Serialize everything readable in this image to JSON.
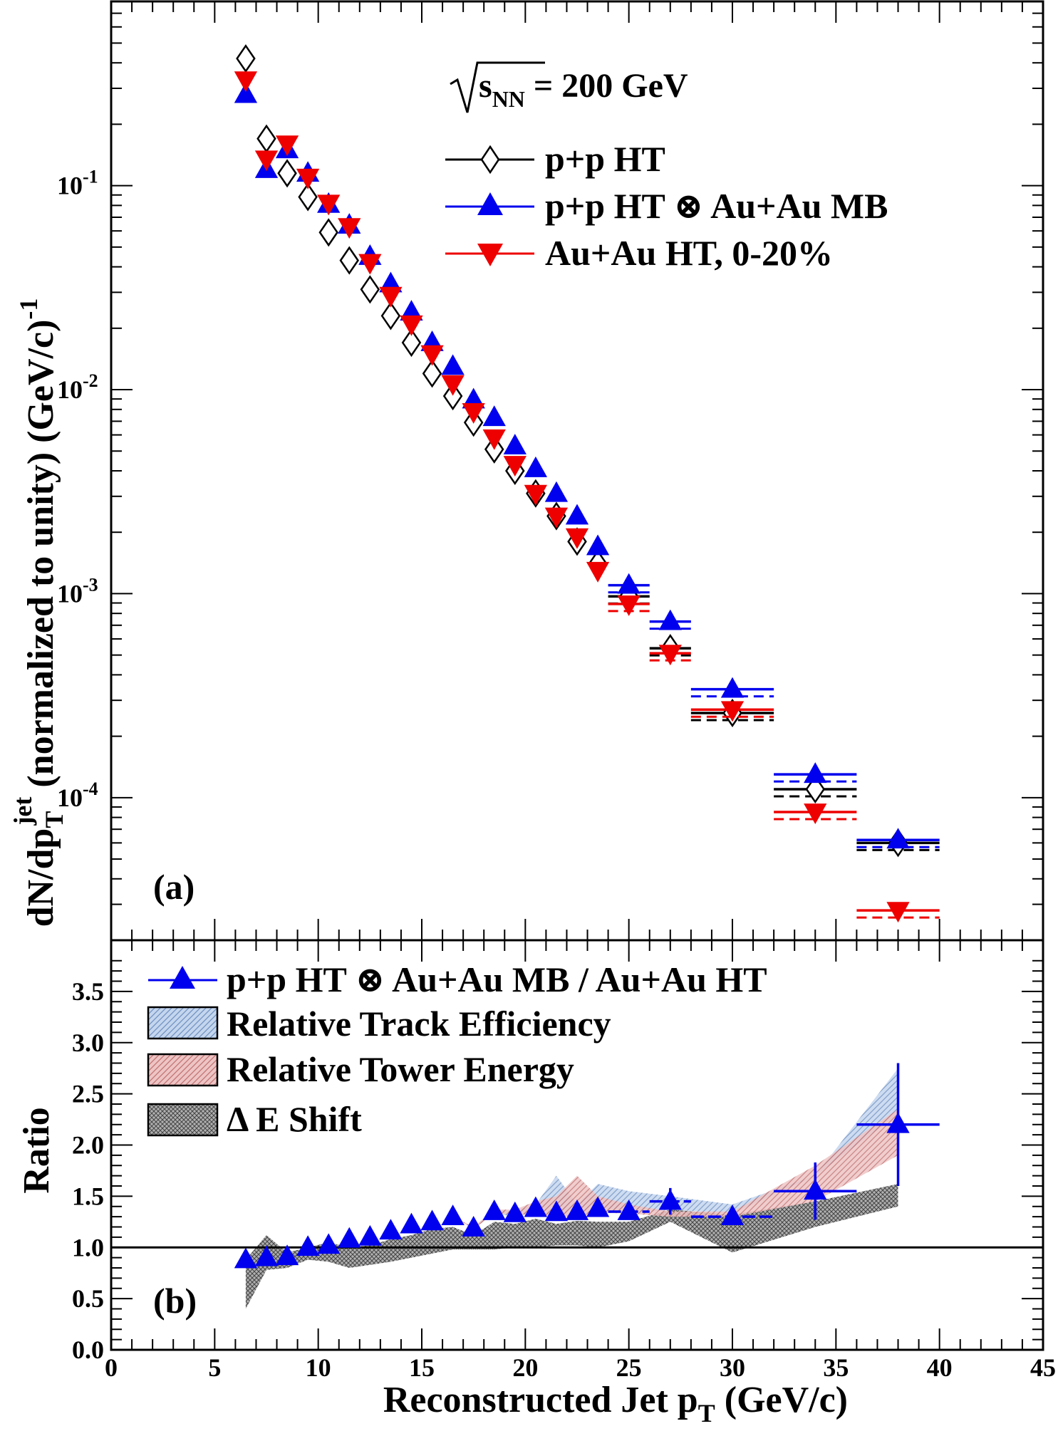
{
  "chart_data": [
    {
      "panel": "a",
      "type": "scatter",
      "panel_label": "(a)",
      "energy_label": "√s_NN = 200 GeV",
      "energy_parts": {
        "prefix": "s",
        "subscript": "NN",
        "suffix": " = 200 GeV"
      },
      "ylabel": "dN/dp_T^jet (normalized to unity) (GeV/c)^-1",
      "ylabel_parts": {
        "a": "dN/dp",
        "sub": "T",
        "sup": "jet",
        "b": " (normalized to unity) (GeV/c)",
        "sup2": "-1"
      },
      "xlim": [
        0,
        45
      ],
      "ylim": [
        2e-05,
        0.8
      ],
      "yscale": "log",
      "yticks": [
        {
          "value": 0.1,
          "base": "10",
          "exp": "-1"
        },
        {
          "value": 0.01,
          "base": "10",
          "exp": "-2"
        },
        {
          "value": 0.001,
          "base": "10",
          "exp": "-3"
        },
        {
          "value": 0.0001,
          "base": "10",
          "exp": "-4"
        }
      ],
      "legend_position": "top-right",
      "series": [
        {
          "name": "p+p HT",
          "marker": "open-diamond",
          "color": "#000000",
          "points": [
            {
              "x": 6.5,
              "y": 0.42,
              "xerr": 0
            },
            {
              "x": 7.5,
              "y": 0.17,
              "xerr": 0
            },
            {
              "x": 8.5,
              "y": 0.115,
              "xerr": 0
            },
            {
              "x": 9.5,
              "y": 0.088,
              "xerr": 0
            },
            {
              "x": 10.5,
              "y": 0.059,
              "xerr": 0
            },
            {
              "x": 11.5,
              "y": 0.043,
              "xerr": 0
            },
            {
              "x": 12.5,
              "y": 0.031,
              "xerr": 0
            },
            {
              "x": 13.5,
              "y": 0.023,
              "xerr": 0
            },
            {
              "x": 14.5,
              "y": 0.017,
              "xerr": 0
            },
            {
              "x": 15.5,
              "y": 0.012,
              "xerr": 0
            },
            {
              "x": 16.5,
              "y": 0.0093,
              "xerr": 0
            },
            {
              "x": 17.5,
              "y": 0.0069,
              "xerr": 0
            },
            {
              "x": 18.5,
              "y": 0.0051,
              "xerr": 0
            },
            {
              "x": 19.5,
              "y": 0.004,
              "xerr": 0
            },
            {
              "x": 20.5,
              "y": 0.0031,
              "xerr": 0
            },
            {
              "x": 21.5,
              "y": 0.0024,
              "xerr": 0
            },
            {
              "x": 22.5,
              "y": 0.0018,
              "xerr": 0
            },
            {
              "x": 23.5,
              "y": 0.0014,
              "xerr": 0
            },
            {
              "x": 25,
              "y": 0.00097,
              "xerr": 1
            },
            {
              "x": 27,
              "y": 0.00054,
              "xerr": 1
            },
            {
              "x": 30,
              "y": 0.00026,
              "xerr": 2
            },
            {
              "x": 34,
              "y": 0.00011,
              "xerr": 2
            },
            {
              "x": 38,
              "y": 6e-05,
              "xerr": 2
            }
          ]
        },
        {
          "name": "p+p HT ⊗ Au+Au MB",
          "marker": "filled-triangle-up",
          "color": "#0000ee",
          "points": [
            {
              "x": 6.5,
              "y": 0.28,
              "xerr": 0
            },
            {
              "x": 7.5,
              "y": 0.12,
              "xerr": 0
            },
            {
              "x": 8.5,
              "y": 0.15,
              "xerr": 0
            },
            {
              "x": 9.5,
              "y": 0.115,
              "xerr": 0
            },
            {
              "x": 10.5,
              "y": 0.081,
              "xerr": 0
            },
            {
              "x": 11.5,
              "y": 0.064,
              "xerr": 0
            },
            {
              "x": 12.5,
              "y": 0.045,
              "xerr": 0
            },
            {
              "x": 13.5,
              "y": 0.033,
              "xerr": 0
            },
            {
              "x": 14.5,
              "y": 0.024,
              "xerr": 0
            },
            {
              "x": 15.5,
              "y": 0.017,
              "xerr": 0
            },
            {
              "x": 16.5,
              "y": 0.013,
              "xerr": 0
            },
            {
              "x": 17.5,
              "y": 0.0089,
              "xerr": 0
            },
            {
              "x": 18.5,
              "y": 0.0073,
              "xerr": 0
            },
            {
              "x": 19.5,
              "y": 0.0053,
              "xerr": 0
            },
            {
              "x": 20.5,
              "y": 0.0041,
              "xerr": 0
            },
            {
              "x": 21.5,
              "y": 0.0031,
              "xerr": 0
            },
            {
              "x": 22.5,
              "y": 0.0024,
              "xerr": 0
            },
            {
              "x": 23.5,
              "y": 0.0017,
              "xerr": 0
            },
            {
              "x": 25,
              "y": 0.0011,
              "xerr": 1
            },
            {
              "x": 27,
              "y": 0.00073,
              "xerr": 1
            },
            {
              "x": 30,
              "y": 0.00034,
              "xerr": 2
            },
            {
              "x": 34,
              "y": 0.00013,
              "xerr": 2
            },
            {
              "x": 38,
              "y": 6.2e-05,
              "xerr": 2
            }
          ]
        },
        {
          "name": "Au+Au HT, 0-20%",
          "marker": "filled-triangle-down",
          "color": "#ee0000",
          "points": [
            {
              "x": 6.5,
              "y": 0.33,
              "xerr": 0
            },
            {
              "x": 7.5,
              "y": 0.135,
              "xerr": 0
            },
            {
              "x": 8.5,
              "y": 0.16,
              "xerr": 0
            },
            {
              "x": 9.5,
              "y": 0.11,
              "xerr": 0
            },
            {
              "x": 10.5,
              "y": 0.082,
              "xerr": 0
            },
            {
              "x": 11.5,
              "y": 0.063,
              "xerr": 0
            },
            {
              "x": 12.5,
              "y": 0.042,
              "xerr": 0
            },
            {
              "x": 13.5,
              "y": 0.029,
              "xerr": 0
            },
            {
              "x": 14.5,
              "y": 0.021,
              "xerr": 0
            },
            {
              "x": 15.5,
              "y": 0.015,
              "xerr": 0
            },
            {
              "x": 16.5,
              "y": 0.0107,
              "xerr": 0
            },
            {
              "x": 17.5,
              "y": 0.0078,
              "xerr": 0
            },
            {
              "x": 18.5,
              "y": 0.0058,
              "xerr": 0
            },
            {
              "x": 19.5,
              "y": 0.0043,
              "xerr": 0
            },
            {
              "x": 20.5,
              "y": 0.0031,
              "xerr": 0
            },
            {
              "x": 21.5,
              "y": 0.0024,
              "xerr": 0
            },
            {
              "x": 22.5,
              "y": 0.0019,
              "xerr": 0
            },
            {
              "x": 23.5,
              "y": 0.0013,
              "xerr": 0
            },
            {
              "x": 25,
              "y": 0.00089,
              "xerr": 1
            },
            {
              "x": 27,
              "y": 0.00051,
              "xerr": 1
            },
            {
              "x": 30,
              "y": 0.00027,
              "xerr": 2
            },
            {
              "x": 34,
              "y": 8.5e-05,
              "xerr": 2
            },
            {
              "x": 38,
              "y": 2.8e-05,
              "xerr": 2
            }
          ]
        }
      ]
    },
    {
      "panel": "b",
      "type": "scatter",
      "panel_label": "(b)",
      "xlabel": "Reconstructed Jet p_T (GeV/c)",
      "xlabel_parts": {
        "a": "Reconstructed Jet p",
        "sub": "T",
        "b": " (GeV/c)"
      },
      "ylabel": "Ratio",
      "xlim": [
        0,
        45
      ],
      "ylim": [
        0,
        4.0
      ],
      "xticks": [
        "0",
        "5",
        "10",
        "15",
        "20",
        "25",
        "30",
        "35",
        "40",
        "45"
      ],
      "yticks": [
        "0.0",
        "0.5",
        "1.0",
        "1.5",
        "2.0",
        "2.5",
        "3.0",
        "3.5"
      ],
      "reference_line": 1.0,
      "legend_position": "top-left",
      "series": [
        {
          "name": "p+p HT ⊗ Au+Au MB / Au+Au HT",
          "marker": "filled-triangle-up",
          "color": "#0000ee",
          "points": [
            {
              "x": 6.5,
              "y": 0.88,
              "xerr": 0,
              "yerr": 0
            },
            {
              "x": 7.5,
              "y": 0.9,
              "xerr": 0,
              "yerr": 0
            },
            {
              "x": 8.5,
              "y": 0.91,
              "xerr": 0,
              "yerr": 0
            },
            {
              "x": 9.5,
              "y": 1.0,
              "xerr": 0,
              "yerr": 0
            },
            {
              "x": 10.5,
              "y": 1.02,
              "xerr": 0,
              "yerr": 0
            },
            {
              "x": 11.5,
              "y": 1.08,
              "xerr": 0,
              "yerr": 0
            },
            {
              "x": 12.5,
              "y": 1.1,
              "xerr": 0,
              "yerr": 0
            },
            {
              "x": 13.5,
              "y": 1.16,
              "xerr": 0,
              "yerr": 0
            },
            {
              "x": 14.5,
              "y": 1.22,
              "xerr": 0,
              "yerr": 0
            },
            {
              "x": 15.5,
              "y": 1.25,
              "xerr": 0,
              "yerr": 0
            },
            {
              "x": 16.5,
              "y": 1.3,
              "xerr": 0,
              "yerr": 0
            },
            {
              "x": 17.5,
              "y": 1.19,
              "xerr": 0,
              "yerr": 0
            },
            {
              "x": 18.5,
              "y": 1.35,
              "xerr": 0,
              "yerr": 0
            },
            {
              "x": 19.5,
              "y": 1.33,
              "xerr": 0,
              "yerr": 0
            },
            {
              "x": 20.5,
              "y": 1.38,
              "xerr": 0,
              "yerr": 0
            },
            {
              "x": 21.5,
              "y": 1.34,
              "xerr": 0,
              "yerr": 0
            },
            {
              "x": 22.5,
              "y": 1.35,
              "xerr": 0,
              "yerr": 0
            },
            {
              "x": 23.5,
              "y": 1.38,
              "xerr": 0,
              "yerr": 0
            },
            {
              "x": 25,
              "y": 1.35,
              "xerr": 1,
              "yerr": 0
            },
            {
              "x": 27,
              "y": 1.45,
              "xerr": 1,
              "yerr": 0.13
            },
            {
              "x": 30,
              "y": 1.3,
              "xerr": 2,
              "yerr": 0.05
            },
            {
              "x": 34,
              "y": 1.55,
              "xerr": 2,
              "yerr": 0.28
            },
            {
              "x": 38,
              "y": 2.2,
              "xerr": 2,
              "yerr": 0.6
            }
          ]
        }
      ],
      "bands": [
        {
          "name": "Relative Track Efficiency",
          "color": "#b4c8e6",
          "x": [
            6.5,
            7.5,
            8.5,
            9.5,
            10.5,
            11.5,
            12.5,
            13.5,
            14.5,
            15.5,
            16.5,
            17.5,
            18.5,
            19.5,
            20.5,
            21.5,
            22.5,
            23.5,
            25,
            27,
            30,
            34,
            38
          ],
          "low": [
            0.88,
            0.9,
            0.91,
            1.0,
            1.02,
            1.08,
            1.1,
            1.16,
            1.22,
            1.25,
            1.3,
            1.19,
            1.33,
            1.3,
            1.35,
            1.3,
            1.32,
            1.35,
            1.33,
            1.37,
            1.33,
            1.7,
            2.3
          ],
          "high": [
            0.88,
            0.9,
            0.91,
            1.0,
            1.02,
            1.08,
            1.1,
            1.16,
            1.22,
            1.25,
            1.3,
            1.2,
            1.36,
            1.36,
            1.42,
            1.7,
            1.42,
            1.62,
            1.55,
            1.5,
            1.42,
            1.7,
            2.75
          ]
        },
        {
          "name": "Relative Tower Energy",
          "color": "#e6b4b4",
          "x": [
            6.5,
            7.5,
            8.5,
            9.5,
            10.5,
            11.5,
            12.5,
            13.5,
            14.5,
            15.5,
            16.5,
            17.5,
            18.5,
            19.5,
            20.5,
            21.5,
            22.5,
            23.5,
            25,
            27,
            30,
            34,
            38
          ],
          "low": [
            0.88,
            0.9,
            0.91,
            1.0,
            1.02,
            1.08,
            1.1,
            1.16,
            1.22,
            1.25,
            1.3,
            1.18,
            1.33,
            1.32,
            1.32,
            1.3,
            1.3,
            1.34,
            1.33,
            1.3,
            1.3,
            1.45,
            1.9
          ],
          "high": [
            0.88,
            0.9,
            0.91,
            1.0,
            1.02,
            1.08,
            1.1,
            1.16,
            1.22,
            1.25,
            1.3,
            1.2,
            1.37,
            1.37,
            1.45,
            1.5,
            1.7,
            1.5,
            1.42,
            1.35,
            1.35,
            1.8,
            2.35
          ]
        },
        {
          "name": "Δ E Shift",
          "color": "#9a9a9a",
          "x": [
            6.5,
            7.5,
            8.5,
            9.5,
            10.5,
            11.5,
            12.5,
            13.5,
            14.5,
            15.5,
            16.5,
            17.5,
            18.5,
            19.5,
            20.5,
            21.5,
            22.5,
            23.5,
            25,
            27,
            30,
            34,
            38
          ],
          "low": [
            0.4,
            0.78,
            0.8,
            0.88,
            0.86,
            0.8,
            0.83,
            0.86,
            0.9,
            0.94,
            0.98,
            0.98,
            0.98,
            1.0,
            1.0,
            1.02,
            1.02,
            1.0,
            1.06,
            1.25,
            0.95,
            1.2,
            1.4
          ],
          "high": [
            0.88,
            1.12,
            0.95,
            1.0,
            1.05,
            1.0,
            1.02,
            1.08,
            1.12,
            1.18,
            1.2,
            1.12,
            1.25,
            1.23,
            1.28,
            1.23,
            1.26,
            1.25,
            1.25,
            1.37,
            1.32,
            1.45,
            1.62
          ]
        }
      ]
    }
  ]
}
